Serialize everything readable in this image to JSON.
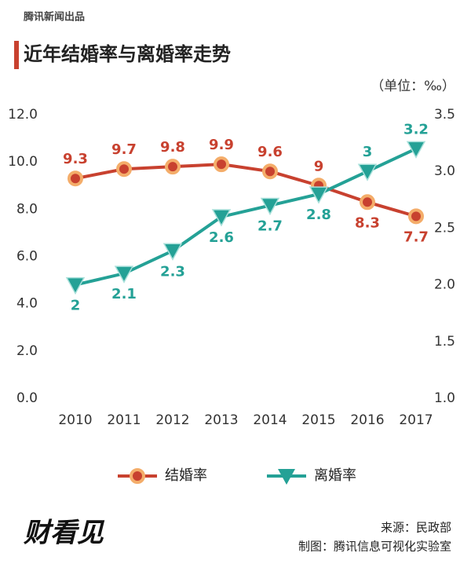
{
  "header": {
    "brand": "腾讯新闻出品"
  },
  "chart_data": {
    "type": "line",
    "title": "近年结婚率与离婚率走势",
    "unit_label": "（单位：‰）",
    "categories": [
      "2010",
      "2011",
      "2012",
      "2013",
      "2014",
      "2015",
      "2016",
      "2017"
    ],
    "series": [
      {
        "name": "结婚率",
        "color": "#c8412f",
        "values": [
          9.3,
          9.7,
          9.8,
          9.9,
          9.6,
          9.0,
          8.3,
          7.7
        ],
        "axis": "y"
      },
      {
        "name": "离婚率",
        "color": "#24a196",
        "values": [
          2.0,
          2.1,
          2.3,
          2.6,
          2.7,
          2.8,
          3.0,
          3.2
        ],
        "axis": "y2"
      }
    ],
    "ylim": [
      0,
      12
    ],
    "yticks": [
      {
        "value": 0,
        "label": "0.0"
      },
      {
        "value": 2,
        "label": "2.0"
      },
      {
        "value": 4,
        "label": "4.0"
      },
      {
        "value": 6,
        "label": "6.0"
      },
      {
        "value": 8,
        "label": "8.0"
      },
      {
        "value": 10,
        "label": "10.0"
      },
      {
        "value": 12,
        "label": "12.0"
      }
    ],
    "y2lim": [
      1,
      3.5
    ],
    "y2ticks": [
      {
        "value": 1,
        "label": "1.0"
      },
      {
        "value": 1.5,
        "label": "1.5"
      },
      {
        "value": 2,
        "label": "2.0"
      },
      {
        "value": 2.5,
        "label": "2.5"
      },
      {
        "value": 3,
        "label": "3.0"
      },
      {
        "value": 3.5,
        "label": "3.5"
      }
    ],
    "grid": false,
    "legend": "bottom"
  },
  "footer": {
    "logo": "财看见",
    "source": "来源：民政部",
    "credit": "制图：腾讯信息可视化实验室"
  }
}
